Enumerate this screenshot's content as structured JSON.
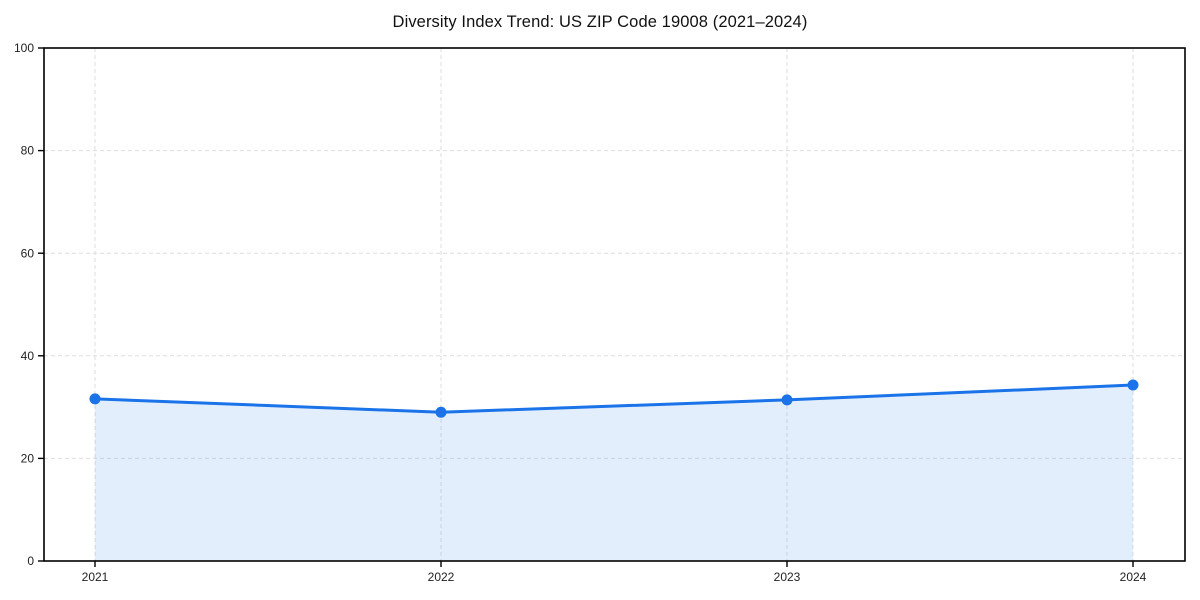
{
  "chart_data": {
    "type": "line",
    "title": "Diversity Index Trend: US ZIP Code 19008 (2021–2024)",
    "x": [
      "2021",
      "2022",
      "2023",
      "2024"
    ],
    "series": [
      {
        "name": "Diversity Index",
        "values": [
          31.6,
          29.0,
          31.4,
          34.3
        ]
      }
    ],
    "xlabel": "",
    "ylabel": "",
    "ylim": [
      0,
      100
    ],
    "yticks": [
      0,
      20,
      40,
      60,
      80,
      100
    ],
    "grid": true,
    "grid_style": "dashed",
    "legend": "none",
    "area_fill": true,
    "marker": "circle",
    "colors": {
      "line": "#1a73e8",
      "marker": "#1a73e8",
      "area": "rgba(26,115,232,0.12)",
      "grid": "#dedede",
      "spine": "#000000",
      "tick_text": "#222222",
      "background": "#ffffff"
    }
  }
}
